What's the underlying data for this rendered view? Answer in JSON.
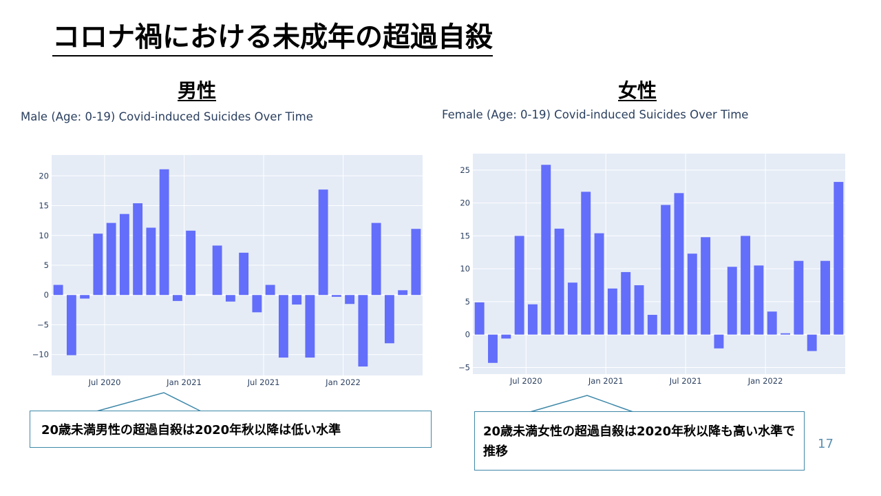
{
  "slide": {
    "title": "コロナ禍における未成年の超過自殺",
    "page_number": "17"
  },
  "sections": {
    "male_heading": "男性",
    "female_heading": "女性"
  },
  "callouts": {
    "male": "20歳未満男性の超過自殺は2020年秋以降は低い水準",
    "female": "20歳未満女性の超過自殺は2020年秋以降も高い水準で推移"
  },
  "colors": {
    "bar": "#636efa",
    "plot_bg": "#e5ecf6",
    "grid": "#ffffff",
    "text": "#2a3f5f",
    "callout_border": "#3d87a8"
  },
  "chart_data": [
    {
      "type": "bar",
      "title": "Male (Age: 0-19) Covid-induced Suicides Over Time",
      "xlabel": "",
      "ylabel": "",
      "x_start": "2020-03",
      "x_ticks": [
        {
          "label": "Jul 2020",
          "month_index": 4
        },
        {
          "label": "Jan 2021",
          "month_index": 10
        },
        {
          "label": "Jul 2021",
          "month_index": 16
        },
        {
          "label": "Jan 2022",
          "month_index": 22
        }
      ],
      "y_ticks": [
        -10,
        -5,
        0,
        5,
        10,
        15,
        20
      ],
      "ylim": [
        -13.5,
        23.5
      ],
      "values": [
        1.7,
        -10.1,
        -0.6,
        10.3,
        12.1,
        13.6,
        15.4,
        11.3,
        21.1,
        -1.0,
        10.8,
        0,
        8.3,
        -1.1,
        7.1,
        -2.9,
        1.7,
        -10.5,
        -1.6,
        -10.5,
        17.7,
        -0.3,
        -1.5,
        -12.0,
        12.1,
        -8.1,
        0.8,
        11.1
      ],
      "grid": true,
      "legend": "none"
    },
    {
      "type": "bar",
      "title": "Female (Age: 0-19) Covid-induced Suicides Over Time",
      "xlabel": "",
      "ylabel": "",
      "x_start": "2020-03",
      "x_ticks": [
        {
          "label": "Jul 2020",
          "month_index": 4
        },
        {
          "label": "Jan 2021",
          "month_index": 10
        },
        {
          "label": "Jul 2021",
          "month_index": 16
        },
        {
          "label": "Jan 2022",
          "month_index": 22
        }
      ],
      "y_ticks": [
        -5,
        0,
        5,
        10,
        15,
        20,
        25
      ],
      "ylim": [
        -6,
        27.5
      ],
      "values": [
        4.9,
        -4.3,
        -0.6,
        15.0,
        4.6,
        25.8,
        16.1,
        7.9,
        21.7,
        15.4,
        7.0,
        9.5,
        7.5,
        3.0,
        19.7,
        21.5,
        12.3,
        14.8,
        -2.1,
        10.3,
        15.0,
        10.5,
        3.5,
        0.2,
        11.2,
        -2.5,
        11.2,
        23.2
      ],
      "grid": true,
      "legend": "none"
    }
  ]
}
